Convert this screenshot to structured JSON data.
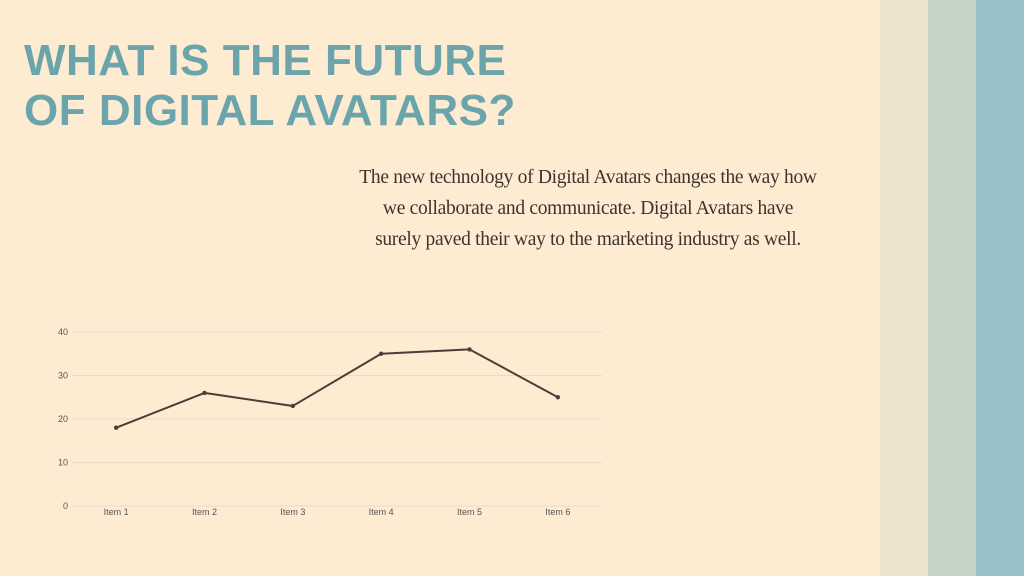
{
  "colors": {
    "background": "#feecd2",
    "title": "#6ba5ab",
    "body_text": "#3d332f",
    "stripes": [
      "#ede3cf",
      "#c5d2c6",
      "#97c0c7"
    ],
    "gridline": "#e6dccb",
    "series_line": "#4a3e38"
  },
  "slide": {
    "title_lines": [
      "WHAT IS THE FUTURE",
      "OF DIGITAL AVATARS?"
    ],
    "body_lines": [
      "The new technology of Digital Avatars changes the way how",
      "we collaborate and communicate. Digital Avatars have",
      "surely paved their way to the marketing industry as well."
    ]
  },
  "chart_data": {
    "type": "line",
    "title": "",
    "xlabel": "",
    "ylabel": "",
    "categories": [
      "Item 1",
      "Item 2",
      "Item 3",
      "Item 4",
      "Item 5",
      "Item 6"
    ],
    "series": [
      {
        "values": [
          18,
          26,
          23,
          35,
          36,
          25
        ]
      }
    ],
    "ylim": [
      0,
      40
    ],
    "yticks": [
      0,
      10,
      20,
      30,
      40
    ],
    "grid": true,
    "legend": "none"
  }
}
